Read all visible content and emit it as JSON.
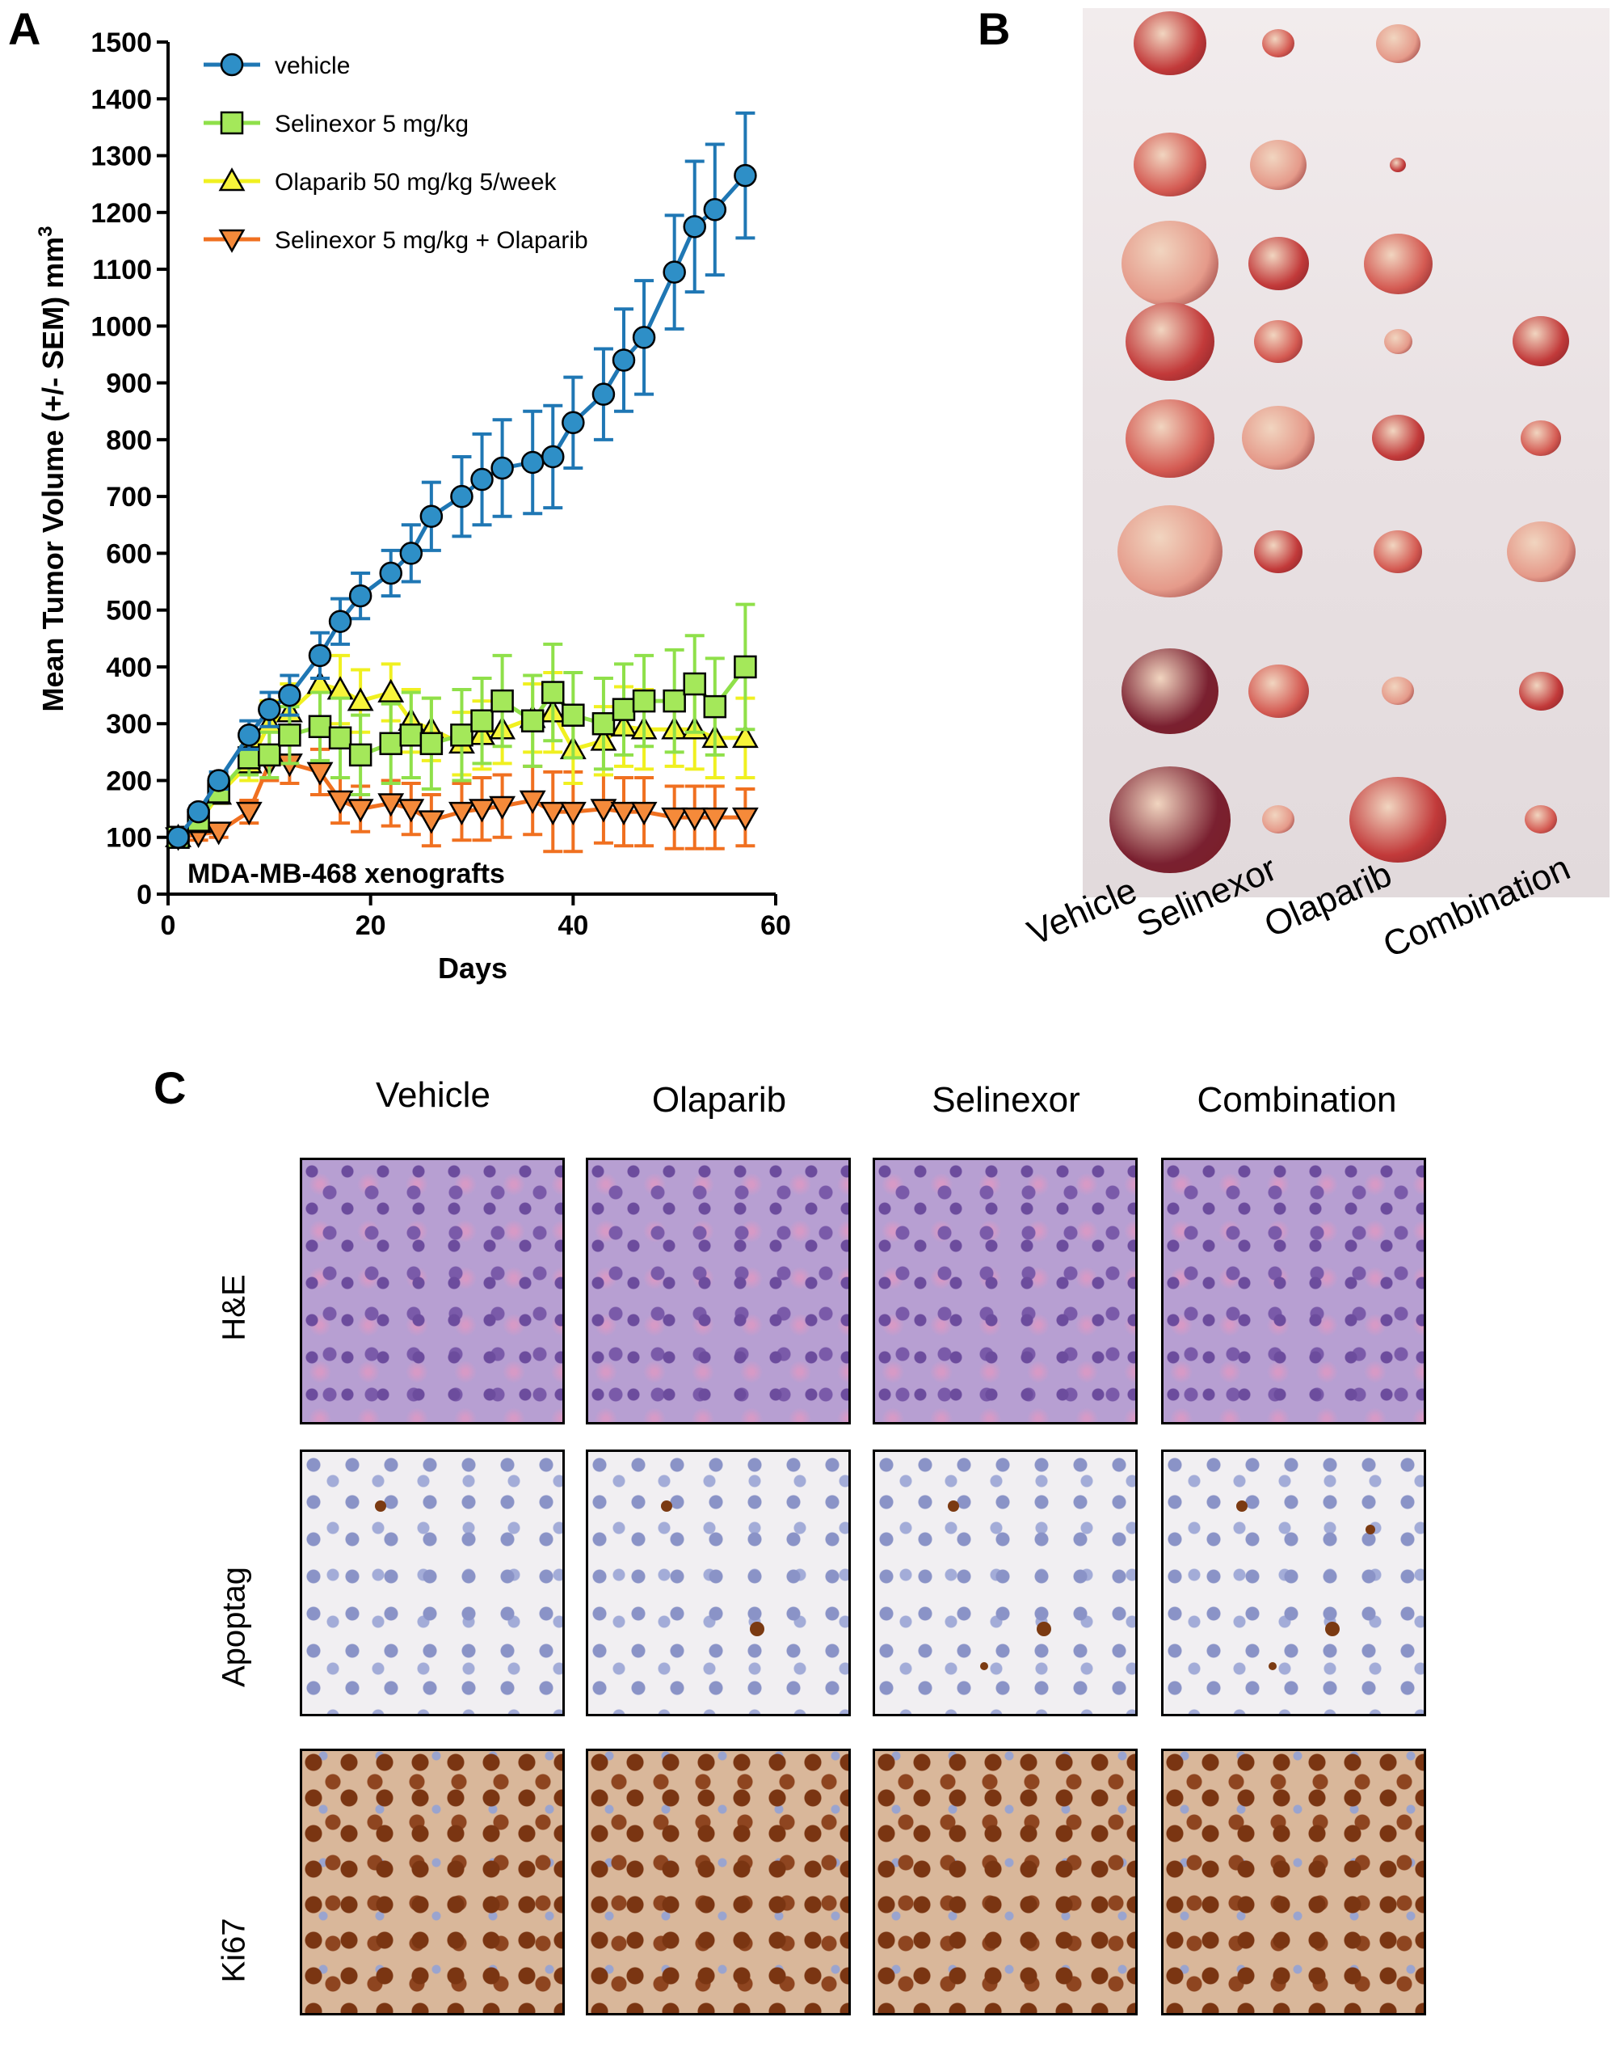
{
  "panels": {
    "a": "A",
    "b": "B",
    "c": "C"
  },
  "chart_data": {
    "type": "line",
    "title": "",
    "annotation": "MDA-MB-468 xenografts",
    "xlabel": "Days",
    "ylabel": "Mean Tumor Volume (+/- SEM) mm",
    "ylabel_superscript": "3",
    "xlim": [
      0,
      60
    ],
    "ylim": [
      0,
      1500
    ],
    "xticks": [
      0,
      20,
      40,
      60
    ],
    "yticks": [
      0,
      100,
      200,
      300,
      400,
      500,
      600,
      700,
      800,
      900,
      1000,
      1100,
      1200,
      1300,
      1400,
      1500
    ],
    "grid": false,
    "legend_position": "top-left",
    "series": [
      {
        "name": "vehicle",
        "color": "#1f77b4",
        "fill": "#2e8fc7",
        "marker": "circle",
        "x": [
          1,
          3,
          5,
          8,
          10,
          12,
          15,
          17,
          19,
          22,
          24,
          26,
          29,
          31,
          33,
          36,
          38,
          40,
          43,
          45,
          47,
          50,
          52,
          54,
          57
        ],
        "y": [
          100,
          145,
          200,
          280,
          325,
          350,
          420,
          480,
          525,
          565,
          600,
          665,
          700,
          730,
          750,
          760,
          770,
          830,
          880,
          940,
          980,
          1095,
          1175,
          1205,
          1265
        ],
        "err": [
          0,
          10,
          15,
          25,
          30,
          35,
          40,
          40,
          40,
          40,
          50,
          60,
          70,
          80,
          85,
          90,
          90,
          80,
          80,
          90,
          100,
          100,
          115,
          115,
          110
        ]
      },
      {
        "name": "Selinexor 5 mg/kg",
        "color": "#8fe04a",
        "fill": "#a4e85a",
        "marker": "square",
        "x": [
          1,
          3,
          5,
          8,
          10,
          12,
          15,
          17,
          19,
          22,
          24,
          26,
          29,
          31,
          33,
          36,
          38,
          40,
          43,
          45,
          47,
          50,
          52,
          54,
          57
        ],
        "y": [
          100,
          130,
          180,
          240,
          245,
          280,
          295,
          275,
          245,
          265,
          280,
          265,
          280,
          305,
          340,
          305,
          355,
          315,
          300,
          325,
          340,
          340,
          370,
          330,
          400
        ],
        "err": [
          0,
          10,
          15,
          30,
          40,
          50,
          60,
          70,
          70,
          70,
          75,
          80,
          80,
          75,
          80,
          80,
          85,
          75,
          80,
          80,
          80,
          90,
          85,
          85,
          110
        ]
      },
      {
        "name": "Olaparib 50 mg/kg 5/week",
        "color": "#f0f020",
        "fill": "#f7f43a",
        "marker": "triangle-up",
        "x": [
          1,
          3,
          5,
          8,
          10,
          12,
          15,
          17,
          19,
          22,
          24,
          26,
          29,
          31,
          33,
          36,
          38,
          40,
          43,
          45,
          47,
          50,
          52,
          54,
          57
        ],
        "y": [
          100,
          125,
          175,
          230,
          300,
          320,
          370,
          360,
          340,
          355,
          305,
          290,
          265,
          280,
          290,
          310,
          320,
          255,
          270,
          295,
          290,
          290,
          290,
          275,
          275
        ],
        "err": [
          0,
          10,
          15,
          30,
          40,
          50,
          60,
          60,
          55,
          50,
          55,
          55,
          55,
          60,
          60,
          60,
          70,
          60,
          60,
          70,
          70,
          65,
          70,
          70,
          70
        ]
      },
      {
        "name": "Selinexor 5 mg/kg + Olaparib",
        "color": "#f07020",
        "fill": "#f58a3a",
        "marker": "triangle-down",
        "x": [
          1,
          3,
          5,
          8,
          10,
          12,
          15,
          17,
          19,
          22,
          24,
          26,
          29,
          31,
          33,
          36,
          38,
          40,
          43,
          45,
          47,
          50,
          52,
          54,
          57
        ],
        "y": [
          100,
          105,
          110,
          145,
          230,
          230,
          215,
          165,
          150,
          160,
          150,
          130,
          145,
          150,
          155,
          165,
          145,
          145,
          150,
          145,
          145,
          135,
          135,
          135,
          135
        ],
        "err": [
          0,
          10,
          10,
          20,
          30,
          35,
          40,
          40,
          40,
          40,
          45,
          45,
          50,
          55,
          55,
          60,
          70,
          70,
          60,
          60,
          60,
          55,
          55,
          55,
          50
        ]
      }
    ]
  },
  "panel_b": {
    "group_labels": [
      "Vehicle",
      "Selinexor",
      "Olaparib",
      "Combination"
    ]
  },
  "panel_c": {
    "columns": [
      "Vehicle",
      "Olaparib",
      "Selinexor",
      "Combination"
    ],
    "rows": [
      "H&E",
      "Apoptag",
      "Ki67"
    ]
  }
}
